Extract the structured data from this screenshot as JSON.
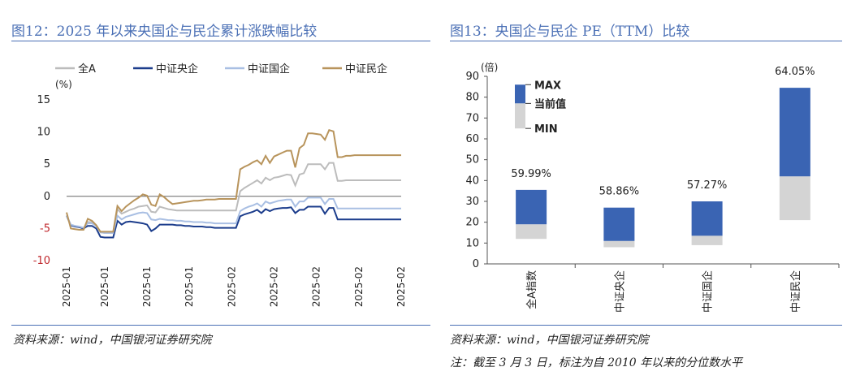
{
  "left": {
    "title": "图12：2025 年以来央国企与民企累计涨跌幅比较",
    "source": "资料来源：wind，中国银河证券研究院",
    "unit": "(%)",
    "chart_data": {
      "type": "line",
      "ylim": [
        -10,
        15
      ],
      "yticks": [
        15,
        10,
        5,
        0,
        -5,
        -10
      ],
      "xticks": [
        "2025-01",
        "2025-01",
        "2025-01",
        "2025-01",
        "2025-02",
        "2025-02",
        "2025-02",
        "2025-02",
        "2025-02"
      ],
      "xtick_index": [
        0,
        9,
        19,
        29,
        39,
        49,
        59,
        69,
        79
      ],
      "grid": false,
      "legend": "top",
      "series": [
        {
          "name": "全A",
          "color": "#bcbcbc",
          "values": [
            -3,
            -4.5,
            -4.6,
            -4.8,
            -5,
            -4,
            -4,
            -4.5,
            -5.6,
            -5.7,
            -5.7,
            -5.7,
            -2,
            -2.7,
            -2.4,
            -2.1,
            -1.9,
            -1.6,
            -1.5,
            -1.4,
            -2.4,
            -2.5,
            -1.6,
            -1.8,
            -2,
            -2.1,
            -2.2,
            -2.2,
            -2.2,
            -2.2,
            -2.2,
            -2.2,
            -2.2,
            -2.2,
            -2.2,
            -2.2,
            -2.2,
            -2.2,
            -2.2,
            -2.2,
            -2.2,
            0.8,
            1.3,
            1.7,
            2.1,
            2.5,
            2,
            2.9,
            2.5,
            2.9,
            3,
            3.2,
            3.4,
            3.3,
            1.7,
            3.4,
            3.6,
            5,
            5,
            5,
            5,
            4.2,
            5.2,
            5.2,
            2.4,
            2.4,
            2.5,
            2.5,
            2.5,
            2.5,
            2.5,
            2.5,
            2.5,
            2.5,
            2.5,
            2.5,
            2.5,
            2.5,
            2.5,
            2.5
          ]
        },
        {
          "name": "中证央企",
          "color": "#1c3d8c",
          "values": [
            -3,
            -4.5,
            -4.7,
            -4.8,
            -5,
            -4.6,
            -4.6,
            -5,
            -6.3,
            -6.4,
            -6.4,
            -6.4,
            -3.8,
            -4.4,
            -4,
            -3.9,
            -4,
            -4.1,
            -4.2,
            -4.4,
            -5.4,
            -5,
            -4.4,
            -4.4,
            -4.4,
            -4.4,
            -4.5,
            -4.5,
            -4.6,
            -4.6,
            -4.7,
            -4.7,
            -4.7,
            -4.8,
            -4.8,
            -4.9,
            -4.9,
            -4.9,
            -4.9,
            -4.9,
            -4.9,
            -3.1,
            -2.8,
            -2.6,
            -2.4,
            -2.1,
            -2.6,
            -2,
            -2.3,
            -2,
            -1.9,
            -1.8,
            -1.8,
            -1.7,
            -2.6,
            -2.1,
            -2.1,
            -1.6,
            -1.6,
            -1.6,
            -1.6,
            -2.7,
            -1.8,
            -1.8,
            -3.6,
            -3.6,
            -3.6,
            -3.6,
            -3.6,
            -3.6,
            -3.6,
            -3.6,
            -3.6,
            -3.6,
            -3.6,
            -3.6,
            -3.6,
            -3.6,
            -3.6,
            -3.6
          ]
        },
        {
          "name": "中证国企",
          "color": "#a9bfe3",
          "values": [
            -3,
            -4.4,
            -4.6,
            -4.7,
            -4.9,
            -4.2,
            -4.2,
            -4.6,
            -5.6,
            -5.7,
            -5.7,
            -5.7,
            -3,
            -3.6,
            -3.2,
            -3,
            -2.8,
            -2.6,
            -2.5,
            -2.6,
            -3.6,
            -3.7,
            -3.5,
            -3.6,
            -3.7,
            -3.7,
            -3.8,
            -3.8,
            -3.9,
            -3.9,
            -4,
            -4,
            -4,
            -4.1,
            -4.1,
            -4.2,
            -4.2,
            -4.2,
            -4.2,
            -4.2,
            -4.2,
            -2.3,
            -1.9,
            -1.6,
            -1.4,
            -1.1,
            -1.6,
            -0.8,
            -1.1,
            -0.9,
            -0.7,
            -0.6,
            -0.5,
            -0.5,
            -1.6,
            -0.8,
            -0.8,
            -0.2,
            -0.2,
            -0.2,
            -0.2,
            -1.2,
            -0.4,
            -0.4,
            -1.9,
            -1.9,
            -1.9,
            -1.9,
            -1.9,
            -1.9,
            -1.9,
            -1.9,
            -1.9,
            -1.9,
            -1.9,
            -1.9,
            -1.9,
            -1.9,
            -1.9,
            -1.9
          ]
        },
        {
          "name": "中证民企",
          "color": "#b8945c",
          "values": [
            -2.5,
            -5,
            -5.1,
            -5.2,
            -5.2,
            -3.5,
            -3.8,
            -4.5,
            -5.5,
            -5.5,
            -5.5,
            -5.5,
            -1.5,
            -2.3,
            -1.6,
            -1.1,
            -0.6,
            -0.2,
            0.3,
            0.1,
            -1.3,
            -1.5,
            0.3,
            -0.1,
            -0.7,
            -1.2,
            -1.1,
            -1,
            -0.9,
            -0.8,
            -0.7,
            -0.7,
            -0.6,
            -0.5,
            -0.5,
            -0.5,
            -0.4,
            -0.4,
            -0.4,
            -0.4,
            -0.4,
            4.2,
            4.6,
            4.9,
            5.3,
            5.6,
            5,
            6.3,
            5.2,
            6.2,
            6.5,
            6.8,
            7.1,
            7.1,
            4.5,
            7.5,
            8,
            9.8,
            9.8,
            9.7,
            9.6,
            8.8,
            10.3,
            10.1,
            6.1,
            6.1,
            6.3,
            6.3,
            6.4,
            6.4,
            6.4,
            6.4,
            6.4,
            6.4,
            6.4,
            6.4,
            6.4,
            6.4,
            6.4,
            6.4
          ]
        }
      ]
    }
  },
  "right": {
    "title": "图13：央国企与民企 PE（TTM）比较",
    "source": "资料来源：wind，中国银河证券研究院",
    "note": "注：截至 3 月 3 日，标注为自 2010 年以来的分位数水平",
    "unit": "(倍)",
    "legend": {
      "max": "MAX",
      "current": "当前值",
      "min": "MIN"
    },
    "colors": {
      "upper": "#3a64b3",
      "lower": "#d4d4d4"
    },
    "chart_data": {
      "type": "bar",
      "subtype": "floating-range",
      "ylim": [
        0,
        90
      ],
      "yticks": [
        90,
        80,
        70,
        60,
        50,
        40,
        30,
        20,
        10,
        0
      ],
      "categories": [
        "全A指数",
        "中证央企",
        "中证国企",
        "中证民企"
      ],
      "min": [
        12,
        8,
        9,
        21
      ],
      "current": [
        19,
        11,
        13.5,
        42
      ],
      "max": [
        35.5,
        27,
        30,
        84.5
      ],
      "percentile_labels": [
        "59.99%",
        "58.86%",
        "57.27%",
        "64.05%"
      ]
    }
  }
}
